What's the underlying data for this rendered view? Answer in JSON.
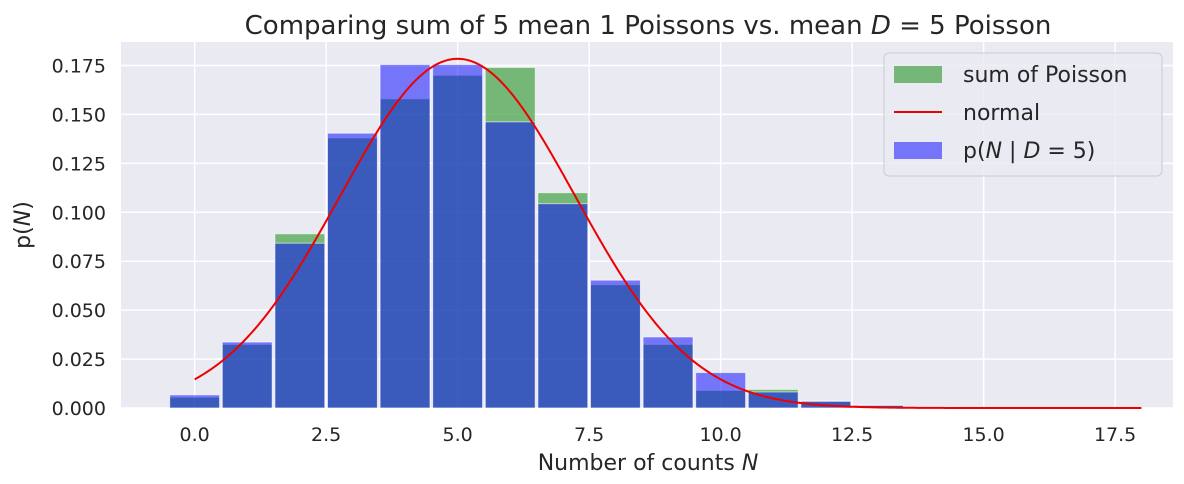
{
  "chart_data": {
    "type": "bar",
    "title_parts": [
      "Comparing sum of 5 mean 1 Poissons vs. mean ",
      "D",
      " = 5 Poisson"
    ],
    "xlabel_parts": [
      "Number of counts ",
      "N"
    ],
    "ylabel_parts": [
      "p(",
      "N",
      ")"
    ],
    "xlim": [
      -1.4,
      18.6
    ],
    "ylim": [
      0,
      0.187
    ],
    "x_ticks": [
      0.0,
      2.5,
      5.0,
      7.5,
      10.0,
      12.5,
      15.0,
      17.5
    ],
    "x_tick_labels": [
      "0.0",
      "2.5",
      "5.0",
      "7.5",
      "10.0",
      "12.5",
      "15.0",
      "17.5"
    ],
    "y_ticks": [
      0,
      0.025,
      0.05,
      0.075,
      0.1,
      0.125,
      0.15,
      0.175
    ],
    "y_tick_labels": [
      "0.000",
      "0.025",
      "0.050",
      "0.075",
      "0.100",
      "0.125",
      "0.150",
      "0.175"
    ],
    "grid": true,
    "legend_position": "top-right",
    "bar_width": 0.95,
    "series": [
      {
        "name": "sum of Poisson",
        "kind": "bar",
        "color": "#4CA64C",
        "opacity": 0.75,
        "x": [
          0,
          1,
          2,
          3,
          4,
          5,
          6,
          7,
          8,
          9,
          10,
          11,
          12,
          13
        ],
        "values": [
          0.0055,
          0.0325,
          0.089,
          0.138,
          0.158,
          0.17,
          0.174,
          0.11,
          0.063,
          0.0325,
          0.009,
          0.0095,
          0.0035,
          0.0015
        ]
      },
      {
        "name": "normal",
        "kind": "line",
        "color": "#EE0000",
        "mean": 5,
        "std": 2.236,
        "x_range": [
          0,
          18
        ]
      },
      {
        "name_parts": [
          "p(",
          "N",
          " | ",
          "D",
          " = 5)"
        ],
        "kind": "bar",
        "color": "#0000FF",
        "opacity": 0.5,
        "x": [
          0,
          1,
          2,
          3,
          4,
          5,
          6,
          7,
          8,
          9,
          10,
          11,
          12,
          13,
          14,
          15,
          16,
          17,
          18
        ],
        "values": [
          0.0067,
          0.0337,
          0.0842,
          0.1404,
          0.1755,
          0.1755,
          0.1462,
          0.1044,
          0.0653,
          0.0363,
          0.0181,
          0.0082,
          0.0034,
          0.0013,
          0.0005,
          0.0002,
          0.0001,
          0.0,
          0.0
        ]
      }
    ]
  }
}
